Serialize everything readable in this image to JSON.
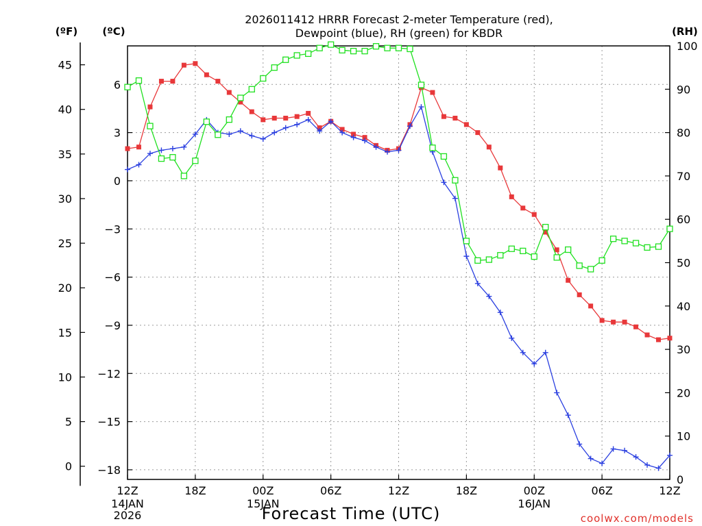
{
  "chart_data": {
    "type": "line",
    "title": [
      "2026011412 HRRR Forecast 2-meter Temperature (red),",
      "Dewpoint (blue), RH (green) for KBDR"
    ],
    "xlabel": "Forecast Time (UTC)",
    "credit": "coolwx.com/models",
    "units": {
      "f": "(ºF)",
      "c": "(ºC)",
      "rh": "(RH)"
    },
    "x_range": [
      0,
      48
    ],
    "x_ticks": [
      {
        "x": 0,
        "label": "12Z",
        "sub": [
          "14JAN",
          "2026"
        ]
      },
      {
        "x": 6,
        "label": "18Z",
        "sub": []
      },
      {
        "x": 12,
        "label": "00Z",
        "sub": [
          "15JAN"
        ]
      },
      {
        "x": 18,
        "label": "06Z",
        "sub": []
      },
      {
        "x": 24,
        "label": "12Z",
        "sub": []
      },
      {
        "x": 30,
        "label": "18Z",
        "sub": []
      },
      {
        "x": 36,
        "label": "00Z",
        "sub": [
          "16JAN"
        ]
      },
      {
        "x": 42,
        "label": "06Z",
        "sub": []
      },
      {
        "x": 48,
        "label": "12Z",
        "sub": []
      }
    ],
    "y_celsius": {
      "range": [
        -18.6,
        8.4
      ],
      "ticks": [
        6,
        3,
        0,
        -3,
        -6,
        -9,
        -12,
        -15,
        -18
      ],
      "grid": true
    },
    "y_fahrenheit": {
      "ticks": [
        45,
        40,
        35,
        30,
        25,
        20,
        15,
        10,
        5,
        0
      ]
    },
    "y_rh": {
      "range": [
        0,
        100
      ],
      "ticks": [
        100,
        90,
        80,
        70,
        60,
        50,
        40,
        30,
        20,
        10,
        0
      ]
    },
    "series": [
      {
        "name": "Temperature",
        "unit": "C",
        "color": "#e8383a",
        "marker": "filled-square",
        "values": [
          2.0,
          2.1,
          4.6,
          6.2,
          6.2,
          7.2,
          7.3,
          6.6,
          6.2,
          5.5,
          4.9,
          4.3,
          3.8,
          3.9,
          3.9,
          4.0,
          4.2,
          3.3,
          3.7,
          3.2,
          2.9,
          2.7,
          2.2,
          1.9,
          2.0,
          3.5,
          5.8,
          5.5,
          4.0,
          3.9,
          3.5,
          3.0,
          2.1,
          0.8,
          -1.0,
          -1.7,
          -2.1,
          -3.2,
          -4.3,
          -6.2,
          -7.1,
          -7.8,
          -8.7,
          -8.8,
          -8.8,
          -9.1,
          -9.6,
          -9.9,
          -9.8
        ]
      },
      {
        "name": "Dewpoint",
        "unit": "C",
        "color": "#2a3fe0",
        "marker": "plus",
        "values": [
          0.7,
          1.0,
          1.7,
          1.9,
          2.0,
          2.1,
          2.9,
          3.8,
          3.0,
          2.9,
          3.1,
          2.8,
          2.6,
          3.0,
          3.3,
          3.5,
          3.8,
          3.1,
          3.7,
          3.0,
          2.7,
          2.5,
          2.1,
          1.8,
          1.9,
          3.4,
          4.6,
          1.8,
          -0.1,
          -1.1,
          -4.7,
          -6.4,
          -7.2,
          -8.2,
          -9.8,
          -10.7,
          -11.4,
          -10.7,
          -13.2,
          -14.6,
          -16.4,
          -17.3,
          -17.6,
          -16.7,
          -16.8,
          -17.2,
          -17.7,
          -17.9,
          -17.1
        ]
      },
      {
        "name": "RH",
        "unit": "%",
        "color": "#1fe01f",
        "marker": "open-square",
        "values": [
          90.5,
          92.0,
          81.5,
          74.0,
          74.3,
          70.0,
          73.5,
          82.5,
          79.5,
          83.0,
          88.0,
          90.0,
          92.5,
          95.0,
          96.8,
          97.8,
          98.2,
          99.5,
          100.3,
          99.0,
          98.8,
          98.8,
          99.9,
          99.5,
          99.5,
          99.3,
          91.0,
          76.5,
          74.5,
          69.0,
          55.0,
          50.5,
          50.7,
          51.7,
          53.2,
          52.7,
          51.4,
          58.2,
          51.2,
          53.0,
          49.3,
          48.5,
          50.5,
          55.5,
          55.0,
          54.5,
          53.5,
          53.7,
          57.8
        ]
      }
    ]
  }
}
